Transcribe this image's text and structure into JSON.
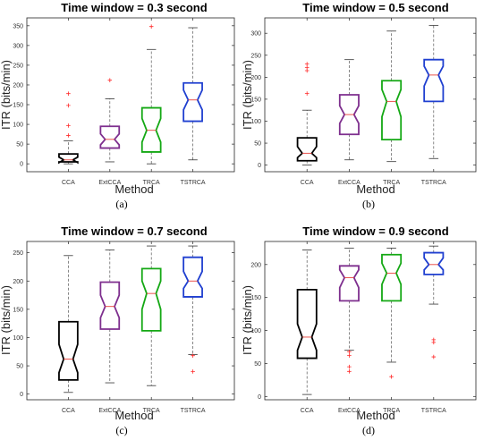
{
  "chart_data": [
    {
      "type": "box",
      "panel_label": "(a)",
      "title": "Time window = 0.3 second",
      "xlabel": "Method",
      "ylabel": "ITR (bits/min)",
      "categories": [
        "CCA",
        "ExtCCA",
        "TRCA",
        "TSTRCA"
      ],
      "ylim": [
        -20,
        370
      ],
      "yticks": [
        0,
        50,
        100,
        150,
        200,
        250,
        300,
        350
      ],
      "boxes": [
        {
          "name": "CCA",
          "color": "#000000",
          "q1": 5,
          "median": 10,
          "q3": 25,
          "notch": [
            3,
            17
          ],
          "whisker_low": 0,
          "whisker_high": 58,
          "outliers": [
            72,
            97,
            148,
            178
          ]
        },
        {
          "name": "ExtCCA",
          "color": "#7e2f8e",
          "q1": 40,
          "median": 62,
          "q3": 95,
          "notch": [
            48,
            76
          ],
          "whisker_low": 5,
          "whisker_high": 165,
          "outliers": [
            212
          ]
        },
        {
          "name": "TRCA",
          "color": "#14a814",
          "q1": 30,
          "median": 85,
          "q3": 142,
          "notch": [
            55,
            115
          ],
          "whisker_low": 0,
          "whisker_high": 290,
          "outliers": [
            348
          ]
        },
        {
          "name": "TSTRCA",
          "color": "#1f3fd0",
          "q1": 108,
          "median": 162,
          "q3": 205,
          "notch": [
            137,
            187
          ],
          "whisker_low": 10,
          "whisker_high": 345,
          "outliers": []
        }
      ]
    },
    {
      "type": "box",
      "panel_label": "(b)",
      "title": "Time window = 0.5 second",
      "xlabel": "Method",
      "ylabel": "ITR (bits/min)",
      "categories": [
        "CCA",
        "ExtCCA",
        "TRCA",
        "TSTRCA"
      ],
      "ylim": [
        -15,
        335
      ],
      "yticks": [
        0,
        50,
        100,
        150,
        200,
        250,
        300
      ],
      "boxes": [
        {
          "name": "CCA",
          "color": "#000000",
          "q1": 10,
          "median": 27,
          "q3": 62,
          "notch": [
            17,
            42
          ],
          "whisker_low": 0,
          "whisker_high": 125,
          "outliers": [
            163,
            215,
            222,
            230
          ]
        },
        {
          "name": "ExtCCA",
          "color": "#7e2f8e",
          "q1": 70,
          "median": 115,
          "q3": 160,
          "notch": [
            95,
            135
          ],
          "whisker_low": 12,
          "whisker_high": 240,
          "outliers": []
        },
        {
          "name": "TRCA",
          "color": "#14a814",
          "q1": 58,
          "median": 145,
          "q3": 192,
          "notch": [
            110,
            172
          ],
          "whisker_low": 8,
          "whisker_high": 305,
          "outliers": []
        },
        {
          "name": "TSTRCA",
          "color": "#1f3fd0",
          "q1": 145,
          "median": 205,
          "q3": 240,
          "notch": [
            180,
            225
          ],
          "whisker_low": 15,
          "whisker_high": 318,
          "outliers": []
        }
      ]
    },
    {
      "type": "box",
      "panel_label": "(c)",
      "title": "Time window = 0.7 second",
      "xlabel": "Method",
      "ylabel": "ITR (bits/min)",
      "categories": [
        "CCA",
        "ExtCCA",
        "TRCA",
        "TSTRCA"
      ],
      "ylim": [
        -10,
        270
      ],
      "yticks": [
        0,
        50,
        100,
        150,
        200,
        250
      ],
      "boxes": [
        {
          "name": "CCA",
          "color": "#000000",
          "q1": 25,
          "median": 62,
          "q3": 128,
          "notch": [
            38,
            88
          ],
          "whisker_low": 3,
          "whisker_high": 245,
          "outliers": []
        },
        {
          "name": "ExtCCA",
          "color": "#7e2f8e",
          "q1": 115,
          "median": 155,
          "q3": 198,
          "notch": [
            135,
            175
          ],
          "whisker_low": 20,
          "whisker_high": 255,
          "outliers": []
        },
        {
          "name": "TRCA",
          "color": "#14a814",
          "q1": 112,
          "median": 178,
          "q3": 222,
          "notch": [
            150,
            200
          ],
          "whisker_low": 15,
          "whisker_high": 262,
          "outliers": []
        },
        {
          "name": "TSTRCA",
          "color": "#1f3fd0",
          "q1": 172,
          "median": 200,
          "q3": 242,
          "notch": [
            187,
            217
          ],
          "whisker_low": 70,
          "whisker_high": 262,
          "outliers": [
            40,
            68
          ]
        }
      ]
    },
    {
      "type": "box",
      "panel_label": "(d)",
      "title": "Time window = 0.9 second",
      "xlabel": "Method",
      "ylabel": "ITR (bits/min)",
      "categories": [
        "CCA",
        "ExtCCA",
        "TRCA",
        "TSTRCA"
      ],
      "ylim": [
        -5,
        235
      ],
      "yticks": [
        0,
        50,
        100,
        150,
        200
      ],
      "boxes": [
        {
          "name": "CCA",
          "color": "#000000",
          "q1": 58,
          "median": 90,
          "q3": 162,
          "notch": [
            70,
            110
          ],
          "whisker_low": 3,
          "whisker_high": 222,
          "outliers": []
        },
        {
          "name": "ExtCCA",
          "color": "#7e2f8e",
          "q1": 145,
          "median": 180,
          "q3": 198,
          "notch": [
            165,
            192
          ],
          "whisker_low": 70,
          "whisker_high": 225,
          "outliers": [
            38,
            45,
            62,
            68
          ]
        },
        {
          "name": "TRCA",
          "color": "#14a814",
          "q1": 145,
          "median": 187,
          "q3": 215,
          "notch": [
            170,
            202
          ],
          "whisker_low": 52,
          "whisker_high": 225,
          "outliers": [
            30
          ]
        },
        {
          "name": "TSTRCA",
          "color": "#1f3fd0",
          "q1": 185,
          "median": 200,
          "q3": 218,
          "notch": [
            192,
            210
          ],
          "whisker_low": 140,
          "whisker_high": 228,
          "outliers": [
            60,
            82,
            86
          ]
        }
      ]
    }
  ]
}
